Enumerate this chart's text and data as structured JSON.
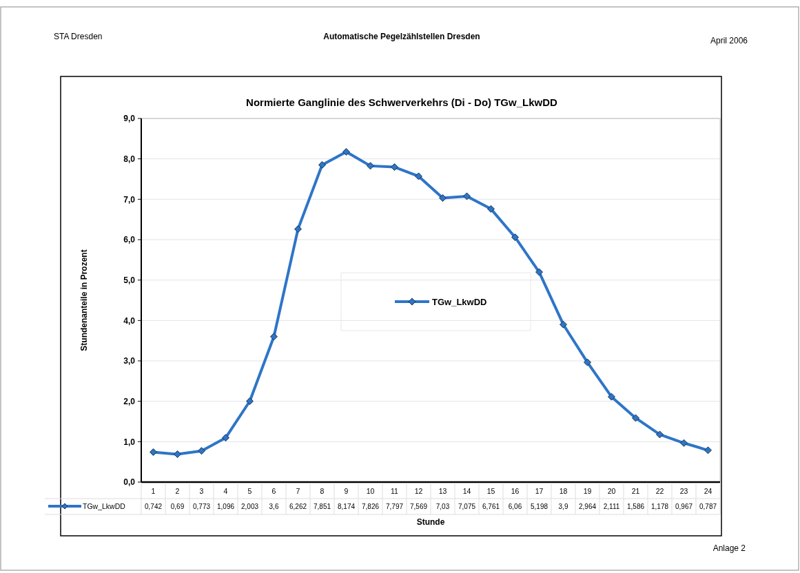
{
  "chart_data": {
    "type": "line",
    "title": "Normierte Ganglinie des Schwerverkehrs (Di - Do) TGw_LkwDD",
    "xlabel": "Stunde",
    "ylabel": "Stundenanteile in Prozent",
    "annotations": [
      "STA Dresden",
      "Automatische Pegelzählstellen Dresden",
      "April 2006",
      "Anlage 2"
    ],
    "categories": [
      "1",
      "2",
      "3",
      "4",
      "5",
      "6",
      "7",
      "8",
      "9",
      "10",
      "11",
      "12",
      "13",
      "14",
      "15",
      "16",
      "17",
      "18",
      "19",
      "20",
      "21",
      "22",
      "23",
      "24"
    ],
    "series": [
      {
        "name": "TGw_LkwDD",
        "color": "#2e75c8",
        "values": [
          0.742,
          0.69,
          0.773,
          1.096,
          2.003,
          3.6,
          6.262,
          7.851,
          8.174,
          7.826,
          7.797,
          7.569,
          7.03,
          7.075,
          6.761,
          6.06,
          5.198,
          3.9,
          2.964,
          2.111,
          1.586,
          1.178,
          0.967,
          0.787
        ],
        "value_labels": [
          "0,742",
          "0,69",
          "0,773",
          "1,096",
          "2,003",
          "3,6",
          "6,262",
          "7,851",
          "8,174",
          "7,826",
          "7,797",
          "7,569",
          "7,03",
          "7,075",
          "6,761",
          "6,06",
          "5,198",
          "3,9",
          "2,964",
          "2,111",
          "1,586",
          "1,178",
          "0,967",
          "0,787"
        ]
      }
    ],
    "ylim": [
      0,
      9
    ],
    "yticks": [
      {
        "value": 0,
        "label": "0,0"
      },
      {
        "value": 1,
        "label": "1,0"
      },
      {
        "value": 2,
        "label": "2,0"
      },
      {
        "value": 3,
        "label": "3,0"
      },
      {
        "value": 4,
        "label": "4,0"
      },
      {
        "value": 5,
        "label": "5,0"
      },
      {
        "value": 6,
        "label": "6,0"
      },
      {
        "value": 7,
        "label": "7,0"
      },
      {
        "value": 8,
        "label": "8,0"
      },
      {
        "value": 9,
        "label": "9,0"
      }
    ],
    "grid": "y",
    "legend": "center",
    "marker": "diamond",
    "line_style": "solid"
  }
}
